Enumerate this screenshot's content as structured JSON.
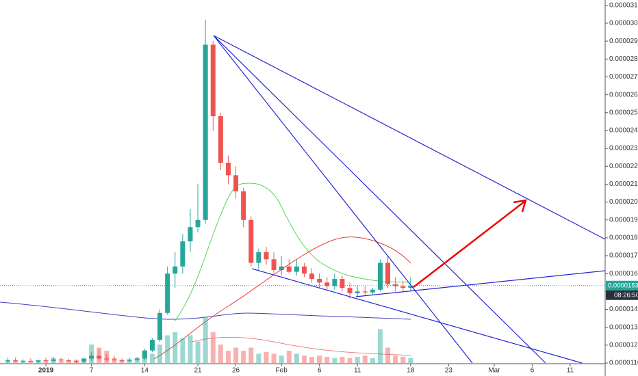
{
  "chart_data": {
    "type": "candlestick",
    "categories": [
      null,
      null,
      null,
      null,
      null,
      "2019",
      null,
      null,
      null,
      null,
      null,
      "7",
      null,
      null,
      null,
      null,
      null,
      null,
      "14",
      null,
      null,
      null,
      null,
      null,
      null,
      "21",
      null,
      null,
      null,
      null,
      "26",
      null,
      null,
      null,
      null,
      null,
      "Feb",
      null,
      null,
      null,
      null,
      "6",
      null,
      null,
      null,
      null,
      "11",
      null,
      null,
      null,
      null,
      null,
      null,
      "18",
      null,
      null,
      null,
      null,
      "23",
      null,
      null,
      null,
      null,
      null,
      "Mar",
      null,
      null,
      null,
      null,
      "6",
      null,
      null,
      null,
      null,
      "11",
      null,
      null,
      null
    ],
    "open": [
      1.11e-05,
      1.115e-05,
      1.11e-05,
      1.112e-05,
      1.108e-05,
      1.115e-05,
      1.112e-05,
      1.12e-05,
      1.115e-05,
      1.11e-05,
      1.108e-05,
      1.125e-05,
      1.14e-05,
      1.125e-05,
      1.12e-05,
      1.115e-05,
      1.112e-05,
      1.118e-05,
      1.125e-05,
      1.17e-05,
      1.23e-05,
      1.38e-05,
      1.6e-05,
      1.64e-05,
      1.78e-05,
      1.86e-05,
      1.9e-05,
      2.88e-05,
      2.48e-05,
      2.22e-05,
      2.15e-05,
      2.06e-05,
      1.9e-05,
      1.66e-05,
      1.72e-05,
      1.68e-05,
      1.62e-05,
      1.64e-05,
      1.61e-05,
      1.64e-05,
      1.6e-05,
      1.57e-05,
      1.55e-05,
      1.53e-05,
      1.57e-05,
      1.52e-05,
      1.49e-05,
      1.5e-05,
      1.495e-05,
      1.51e-05,
      1.66e-05,
      1.54e-05,
      1.53e-05,
      1.52e-05,
      null,
      null,
      null,
      null,
      null,
      null,
      null,
      null,
      null,
      null,
      null,
      null,
      null,
      null,
      null,
      null,
      null,
      null,
      null,
      null,
      null,
      null,
      null,
      null
    ],
    "high": [
      1.13e-05,
      1.13e-05,
      1.12e-05,
      1.125e-05,
      1.12e-05,
      1.13e-05,
      1.135e-05,
      1.13e-05,
      1.125e-05,
      1.12e-05,
      1.13e-05,
      1.16e-05,
      1.175e-05,
      1.15e-05,
      1.14e-05,
      1.125e-05,
      1.13e-05,
      1.135e-05,
      1.18e-05,
      1.24e-05,
      1.4e-05,
      1.64e-05,
      1.72e-05,
      1.82e-05,
      1.96e-05,
      2.1e-05,
      3.02e-05,
      2.9e-05,
      2.5e-05,
      2.26e-05,
      2.2e-05,
      2.08e-05,
      1.92e-05,
      1.74e-05,
      1.75e-05,
      1.72e-05,
      1.7e-05,
      1.68e-05,
      1.68e-05,
      1.66e-05,
      1.63e-05,
      1.6e-05,
      1.58e-05,
      1.6e-05,
      1.59e-05,
      1.55e-05,
      1.53e-05,
      1.53e-05,
      1.52e-05,
      1.68e-05,
      1.7e-05,
      1.58e-05,
      1.56e-05,
      1.58e-05,
      null,
      null,
      null,
      null,
      null,
      null,
      null,
      null,
      null,
      null,
      null,
      null,
      null,
      null,
      null,
      null,
      null,
      null,
      null,
      null,
      null,
      null,
      null,
      null
    ],
    "low": [
      1.1e-05,
      1.105e-05,
      1.1e-05,
      1.105e-05,
      1.1e-05,
      1.108e-05,
      1.105e-05,
      1.11e-05,
      1.105e-05,
      1.1e-05,
      1.1e-05,
      1.11e-05,
      1.115e-05,
      1.11e-05,
      1.11e-05,
      1.105e-05,
      1.105e-05,
      1.11e-05,
      1.115e-05,
      1.16e-05,
      1.22e-05,
      1.37e-05,
      1.52e-05,
      1.6e-05,
      1.72e-05,
      1.83e-05,
      1.88e-05,
      2.4e-05,
      2.18e-05,
      2.1e-05,
      2.02e-05,
      1.86e-05,
      1.64e-05,
      1.62e-05,
      1.65e-05,
      1.6e-05,
      1.59e-05,
      1.6e-05,
      1.59e-05,
      1.58e-05,
      1.55e-05,
      1.52e-05,
      1.51e-05,
      1.51e-05,
      1.5e-05,
      1.46e-05,
      1.47e-05,
      1.48e-05,
      1.48e-05,
      1.5e-05,
      1.52e-05,
      1.5e-05,
      1.5e-05,
      1.5e-05,
      null,
      null,
      null,
      null,
      null,
      null,
      null,
      null,
      null,
      null,
      null,
      null,
      null,
      null,
      null,
      null,
      null,
      null,
      null,
      null,
      null,
      null,
      null,
      null
    ],
    "close": [
      1.115e-05,
      1.11e-05,
      1.112e-05,
      1.108e-05,
      1.115e-05,
      1.112e-05,
      1.12e-05,
      1.115e-05,
      1.11e-05,
      1.108e-05,
      1.125e-05,
      1.14e-05,
      1.125e-05,
      1.12e-05,
      1.115e-05,
      1.112e-05,
      1.118e-05,
      1.125e-05,
      1.17e-05,
      1.23e-05,
      1.38e-05,
      1.6e-05,
      1.64e-05,
      1.78e-05,
      1.86e-05,
      1.9e-05,
      2.88e-05,
      2.48e-05,
      2.22e-05,
      2.15e-05,
      2.06e-05,
      1.9e-05,
      1.66e-05,
      1.72e-05,
      1.68e-05,
      1.62e-05,
      1.64e-05,
      1.61e-05,
      1.64e-05,
      1.6e-05,
      1.57e-05,
      1.55e-05,
      1.53e-05,
      1.57e-05,
      1.52e-05,
      1.49e-05,
      1.5e-05,
      1.495e-05,
      1.51e-05,
      1.66e-05,
      1.54e-05,
      1.53e-05,
      1.52e-05,
      1.533e-05,
      null,
      null,
      null,
      null,
      null,
      null,
      null,
      null,
      null,
      null,
      null,
      null,
      null,
      null,
      null,
      null,
      null,
      null,
      null,
      null,
      null,
      null,
      null,
      null
    ],
    "volume": [
      5,
      3,
      4,
      3,
      3,
      4,
      8,
      4,
      3,
      5,
      6,
      30,
      25,
      20,
      8,
      5,
      6,
      8,
      12,
      15,
      30,
      45,
      50,
      40,
      45,
      35,
      75,
      50,
      30,
      20,
      25,
      20,
      25,
      15,
      18,
      15,
      12,
      20,
      15,
      12,
      10,
      12,
      10,
      8,
      10,
      8,
      10,
      12,
      8,
      55,
      25,
      12,
      10,
      8,
      null,
      null,
      null,
      null,
      null,
      null,
      null,
      null,
      null,
      null,
      null,
      null,
      null,
      null,
      null,
      null,
      null,
      null,
      null,
      null,
      null,
      null,
      null,
      null
    ],
    "up_color": "#26a69a",
    "down_color": "#ef5350",
    "ylim": [
      1.1e-05,
      3.13e-05
    ],
    "yticks": [
      {
        "value": 1.1e-05,
        "label": "0.00001100"
      },
      {
        "value": 1.2e-05,
        "label": "0.00001200"
      },
      {
        "value": 1.3e-05,
        "label": "0.00001300"
      },
      {
        "value": 1.4e-05,
        "label": "0.00001400"
      },
      {
        "value": 1.5e-05,
        "label": "0.00001500"
      },
      {
        "value": 1.6e-05,
        "label": "0.00001600"
      },
      {
        "value": 1.7e-05,
        "label": "0.00001700"
      },
      {
        "value": 1.8e-05,
        "label": "0.00001800"
      },
      {
        "value": 1.9e-05,
        "label": "0.00001900"
      },
      {
        "value": 2e-05,
        "label": "0.00002000"
      },
      {
        "value": 2.1e-05,
        "label": "0.00002100"
      },
      {
        "value": 2.2e-05,
        "label": "0.00002200"
      },
      {
        "value": 2.3e-05,
        "label": "0.00002300"
      },
      {
        "value": 2.4e-05,
        "label": "0.00002400"
      },
      {
        "value": 2.5e-05,
        "label": "0.00002500"
      },
      {
        "value": 2.6e-05,
        "label": "0.00002600"
      },
      {
        "value": 2.7e-05,
        "label": "0.00002700"
      },
      {
        "value": 2.8e-05,
        "label": "0.00002800"
      },
      {
        "value": 2.9e-05,
        "label": "0.00002900"
      },
      {
        "value": 3e-05,
        "label": "0.00003000"
      },
      {
        "value": 3.1e-05,
        "label": "0.00003100"
      }
    ],
    "grid": false,
    "last_price": {
      "value": 1.533e-05,
      "label": "0.00001533"
    },
    "countdown": "08:26:50"
  }
}
